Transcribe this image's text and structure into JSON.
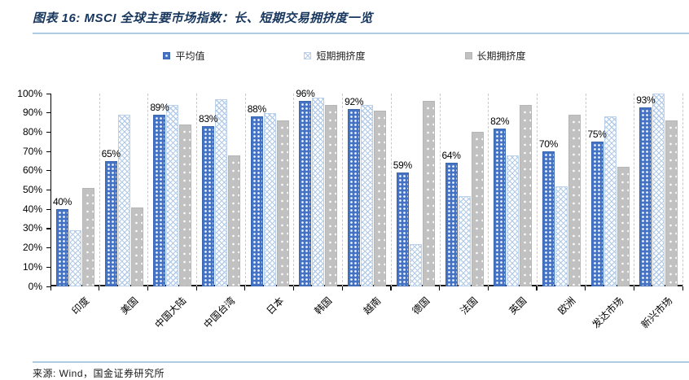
{
  "header": {
    "title": "图表 16: MSCI 全球主要市场指数：长、短期交易拥挤度一览"
  },
  "legend": {
    "items": [
      {
        "label": "平均值",
        "swatch": "avg-pattern-swatch"
      },
      {
        "label": "短期拥挤度",
        "swatch": "short-pattern-swatch"
      },
      {
        "label": "长期拥挤度",
        "swatch": "long-pattern-swatch"
      }
    ]
  },
  "footer": {
    "source": "来源: Wind，国金证券研究所"
  },
  "colors": {
    "title": "#17365D",
    "rule": "#AECBE4",
    "avg_bar": "#4472C4",
    "short_bar_pattern": "#AFC9E8",
    "long_bar": "#C1C1C1",
    "gridline_dashed": "#C9C9C9",
    "axis": "#000000"
  },
  "chart_data": {
    "type": "bar",
    "title": "MSCI 全球主要市场指数：长、短期交易拥挤度一览",
    "categories": [
      "印度",
      "美国",
      "中国大陆",
      "中国台湾",
      "日本",
      "韩国",
      "越南",
      "德国",
      "法国",
      "英国",
      "欧洲",
      "发达市场",
      "新兴市场"
    ],
    "series": [
      {
        "name": "平均值",
        "values": [
          40,
          65,
          89,
          83,
          88,
          96,
          92,
          59,
          64,
          82,
          70,
          75,
          93
        ],
        "data_labels": [
          "40%",
          "65%",
          "89%",
          "83%",
          "88%",
          "96%",
          "92%",
          "59%",
          "64%",
          "82%",
          "70%",
          "75%",
          "93%"
        ]
      },
      {
        "name": "短期拥挤度",
        "values": [
          29,
          89,
          94,
          97,
          90,
          98,
          94,
          22,
          47,
          68,
          52,
          88,
          100
        ]
      },
      {
        "name": "长期拥挤度",
        "values": [
          51,
          41,
          84,
          68,
          86,
          94,
          91,
          96,
          80,
          94,
          89,
          62,
          86
        ]
      }
    ],
    "xlabel": "",
    "ylabel": "",
    "ylim": [
      0,
      100
    ],
    "yticks": [
      "0%",
      "10%",
      "20%",
      "30%",
      "40%",
      "50%",
      "60%",
      "70%",
      "80%",
      "90%",
      "100%"
    ],
    "grid": "vertical dashed lines between categories, no horizontal gridlines",
    "legend_position": "top",
    "data_labels": "shown above 平均值 series bars only"
  }
}
